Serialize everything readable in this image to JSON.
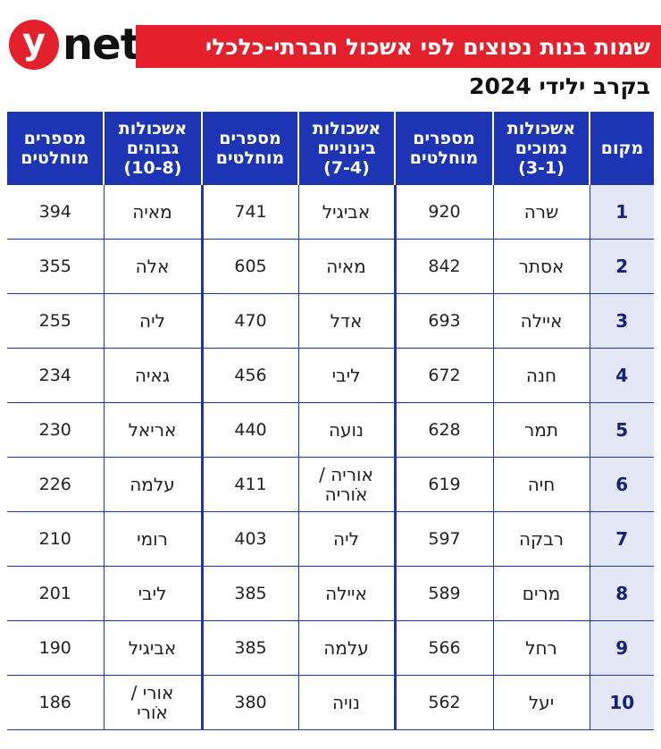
{
  "logo": {
    "mark": "y",
    "text": "net"
  },
  "title": "שמות בנות נפוצים לפי אשכול חברתי-כלכלי",
  "subtitle": "בקרב ילידי 2024",
  "colors": {
    "accent": "#e3202b",
    "table_header": "#1d35b5",
    "rank_bg": "#e4e7f6"
  },
  "chart_data": {
    "type": "table",
    "columns": [
      "מקום",
      "אשכולות נמוכים (3-1)",
      "מספרים מוחלטים",
      "אשכולות בינוניים (7-4)",
      "מספרים מוחלטים",
      "אשכולות גבוהים (10-8)",
      "מספרים מוחלטים"
    ],
    "header_lines": [
      [
        "מקום"
      ],
      [
        "אשכולות",
        "נמוכים",
        "(3-1)"
      ],
      [
        "מספרים",
        "מוחלטים"
      ],
      [
        "אשכולות",
        "בינוניים",
        "(7-4)"
      ],
      [
        "מספרים",
        "מוחלטים"
      ],
      [
        "אשכולות",
        "גבוהים",
        "(10-8)"
      ],
      [
        "מספרים",
        "מוחלטים"
      ]
    ],
    "rows": [
      {
        "rank": "1",
        "low_name": "שרה",
        "low_count": "920",
        "mid_name": "אביגיל",
        "mid_count": "741",
        "high_name": "מאיה",
        "high_count": "394"
      },
      {
        "rank": "2",
        "low_name": "אסתר",
        "low_count": "842",
        "mid_name": "מאיה",
        "mid_count": "605",
        "high_name": "אלה",
        "high_count": "355"
      },
      {
        "rank": "3",
        "low_name": "איילה",
        "low_count": "693",
        "mid_name": "אדל",
        "mid_count": "470",
        "high_name": "ליה",
        "high_count": "255"
      },
      {
        "rank": "4",
        "low_name": "חנה",
        "low_count": "672",
        "mid_name": "ליבי",
        "mid_count": "456",
        "high_name": "גאיה",
        "high_count": "234"
      },
      {
        "rank": "5",
        "low_name": "תמר",
        "low_count": "628",
        "mid_name": "נועה",
        "mid_count": "440",
        "high_name": "אריאל",
        "high_count": "230"
      },
      {
        "rank": "6",
        "low_name": "חיה",
        "low_count": "619",
        "mid_name": "אוריה / אֹוריה",
        "mid_count": "411",
        "high_name": "עלמה",
        "high_count": "226"
      },
      {
        "rank": "7",
        "low_name": "רבקה",
        "low_count": "597",
        "mid_name": "ליה",
        "mid_count": "403",
        "high_name": "רומי",
        "high_count": "210"
      },
      {
        "rank": "8",
        "low_name": "מרים",
        "low_count": "589",
        "mid_name": "איילה",
        "mid_count": "385",
        "high_name": "ליבי",
        "high_count": "201"
      },
      {
        "rank": "9",
        "low_name": "רחל",
        "low_count": "566",
        "mid_name": "עלמה",
        "mid_count": "385",
        "high_name": "אביגיל",
        "high_count": "190"
      },
      {
        "rank": "10",
        "low_name": "יעל",
        "low_count": "562",
        "mid_name": "נויה",
        "mid_count": "380",
        "high_name": "אורי / אֹורי",
        "high_count": "186"
      }
    ]
  }
}
